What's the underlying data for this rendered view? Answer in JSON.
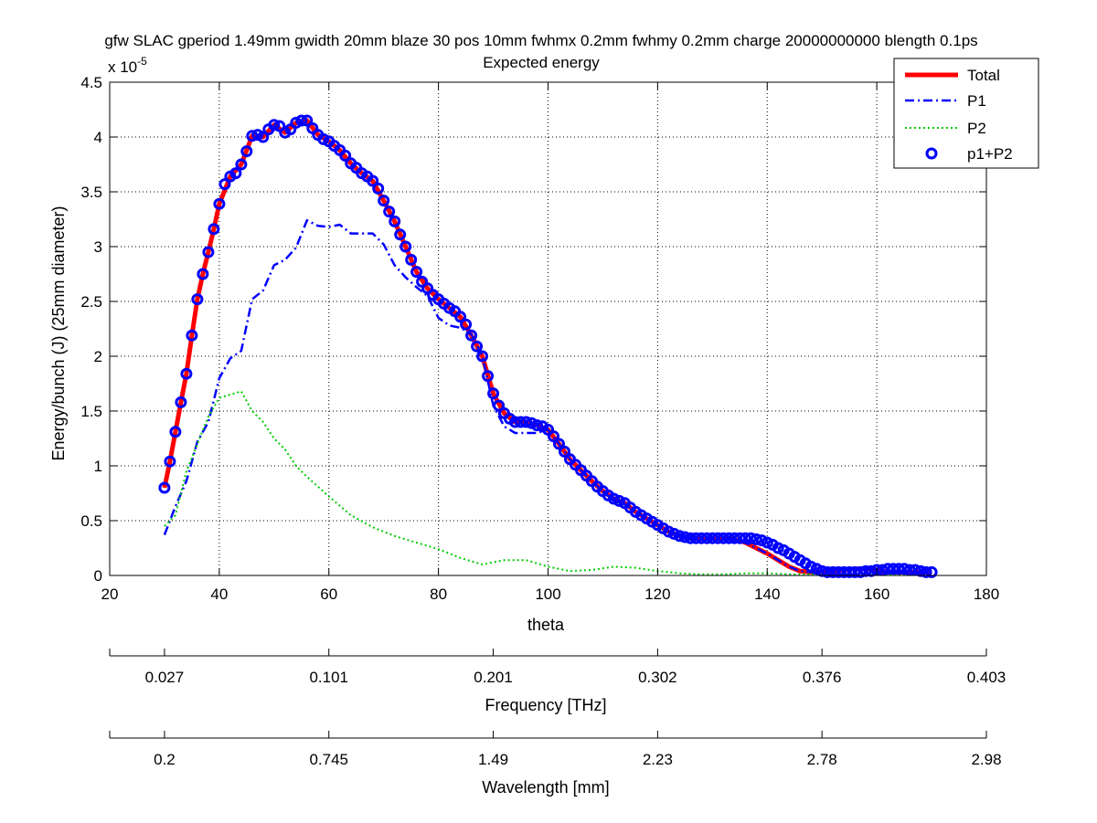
{
  "chart_data": {
    "type": "line",
    "title": "gfw SLAC gperiod 1.49mm gwidth 20mm blaze 30 pos 10mm fwhmx 0.2mm fwhmy 0.2mm charge 20000000000 blength 0.1ps",
    "subtitle": "Expected energy",
    "xlabel": "theta",
    "ylabel": "Energy/bunch (J)  (25mm diameter)",
    "y_multiplier_base": "x 10",
    "y_multiplier_exp": "-5",
    "xlim": [
      20,
      180
    ],
    "ylim": [
      0,
      4.5
    ],
    "x_ticks": [
      20,
      40,
      60,
      80,
      100,
      120,
      140,
      160,
      180
    ],
    "y_ticks": [
      0,
      0.5,
      1,
      1.5,
      2,
      2.5,
      3,
      3.5,
      4,
      4.5
    ],
    "grid": true,
    "legend_position": "top-right",
    "legend": [
      {
        "label": "Total",
        "color": "#ff0000",
        "style": "solid"
      },
      {
        "label": "P1",
        "color": "#0000ff",
        "style": "dashdot"
      },
      {
        "label": "P2",
        "color": "#00cc00",
        "style": "dotted"
      },
      {
        "label": "p1+P2",
        "color": "#0000ff",
        "style": "circle-marker"
      }
    ],
    "series": [
      {
        "name": "Total",
        "color": "#ff0000",
        "x": [
          30,
          31,
          32,
          33,
          34,
          35,
          36,
          37,
          38,
          39,
          40,
          42,
          44,
          46,
          48,
          50,
          52,
          54,
          56,
          58,
          60,
          62,
          64,
          66,
          68,
          70,
          72,
          74,
          76,
          78,
          80,
          82,
          84,
          86,
          88,
          90,
          92,
          94,
          96,
          98,
          100,
          102,
          104,
          106,
          108,
          110,
          112,
          114,
          116,
          118,
          120,
          122,
          124,
          126,
          128,
          130,
          132,
          134,
          136,
          138,
          140,
          142,
          144,
          146,
          148,
          150,
          152,
          154,
          156,
          158,
          160,
          162,
          164,
          166,
          168,
          170
        ],
        "y": [
          0.8,
          1.04,
          1.31,
          1.58,
          1.84,
          2.19,
          2.52,
          2.75,
          2.95,
          3.16,
          3.39,
          3.64,
          3.75,
          4.01,
          4.0,
          4.11,
          4.04,
          4.13,
          4.15,
          4.02,
          3.96,
          3.88,
          3.76,
          3.67,
          3.6,
          3.42,
          3.23,
          3.0,
          2.77,
          2.62,
          2.52,
          2.44,
          2.36,
          2.19,
          2.0,
          1.66,
          1.48,
          1.4,
          1.4,
          1.37,
          1.33,
          1.2,
          1.06,
          0.96,
          0.86,
          0.77,
          0.7,
          0.66,
          0.58,
          0.52,
          0.46,
          0.4,
          0.36,
          0.34,
          0.34,
          0.34,
          0.34,
          0.33,
          0.3,
          0.25,
          0.2,
          0.14,
          0.08,
          0.04,
          0.03,
          0.03,
          0.04,
          0.05,
          0.06,
          0.06,
          0.05,
          0.03,
          0.03,
          0.03,
          0.03,
          0.03
        ]
      },
      {
        "name": "P1",
        "color": "#0000ff",
        "x": [
          30,
          32,
          34,
          36,
          38,
          40,
          42,
          44,
          46,
          48,
          50,
          52,
          54,
          56,
          58,
          60,
          62,
          64,
          66,
          68,
          70,
          72,
          74,
          76,
          78,
          80,
          82,
          84,
          86,
          88,
          90,
          92,
          94,
          96,
          98,
          100,
          102,
          104,
          106,
          108,
          110,
          112,
          114,
          116,
          118,
          120,
          122,
          124,
          126,
          128,
          130,
          132,
          134,
          136,
          138,
          140,
          142,
          144,
          146,
          148,
          150,
          152,
          154,
          156,
          158,
          160,
          162,
          164,
          166,
          168,
          170
        ],
        "y": [
          0.37,
          0.63,
          0.86,
          1.22,
          1.4,
          1.8,
          1.98,
          2.05,
          2.52,
          2.6,
          2.83,
          2.88,
          2.99,
          3.24,
          3.19,
          3.18,
          3.2,
          3.12,
          3.12,
          3.12,
          3.02,
          2.83,
          2.72,
          2.63,
          2.55,
          2.35,
          2.28,
          2.26,
          2.2,
          2.0,
          1.55,
          1.36,
          1.3,
          1.3,
          1.3,
          1.33,
          1.2,
          1.06,
          0.96,
          0.86,
          0.77,
          0.68,
          0.65,
          0.58,
          0.52,
          0.46,
          0.4,
          0.36,
          0.34,
          0.34,
          0.34,
          0.34,
          0.33,
          0.3,
          0.25,
          0.2,
          0.14,
          0.08,
          0.04,
          0.03,
          0.03,
          0.04,
          0.05,
          0.06,
          0.06,
          0.05,
          0.03,
          0.03,
          0.03,
          0.03,
          0.03
        ]
      },
      {
        "name": "P2",
        "color": "#00cc00",
        "x": [
          30,
          32,
          34,
          36,
          38,
          40,
          42,
          44,
          46,
          48,
          50,
          52,
          54,
          56,
          60,
          64,
          68,
          72,
          76,
          80,
          84,
          88,
          92,
          96,
          100,
          104,
          108,
          112,
          116,
          120,
          124,
          128,
          132,
          136,
          140,
          144,
          148,
          152,
          156,
          160,
          164,
          168,
          170
        ],
        "y": [
          0.45,
          0.55,
          0.95,
          1.2,
          1.45,
          1.62,
          1.65,
          1.68,
          1.5,
          1.4,
          1.25,
          1.15,
          1.0,
          0.9,
          0.72,
          0.55,
          0.44,
          0.36,
          0.3,
          0.24,
          0.16,
          0.1,
          0.14,
          0.14,
          0.08,
          0.04,
          0.05,
          0.08,
          0.07,
          0.04,
          0.02,
          0.01,
          0.01,
          0.02,
          0.02,
          0.01,
          0.01,
          0.01,
          0.01,
          0.01,
          0.01,
          0.01,
          0.01
        ]
      },
      {
        "name": "p1+P2",
        "color": "#0000ff",
        "marker": "circle",
        "x": [
          30,
          31,
          32,
          33,
          34,
          35,
          36,
          37,
          38,
          39,
          40,
          41,
          42,
          43,
          44,
          45,
          46,
          47,
          48,
          49,
          50,
          51,
          52,
          53,
          54,
          55,
          56,
          57,
          58,
          59,
          60,
          61,
          62,
          63,
          64,
          65,
          66,
          67,
          68,
          69,
          70,
          71,
          72,
          73,
          74,
          75,
          76,
          77,
          78,
          79,
          80,
          81,
          82,
          83,
          84,
          85,
          86,
          87,
          88,
          89,
          90,
          91,
          92,
          93,
          94,
          95,
          96,
          97,
          98,
          99,
          100,
          101,
          102,
          103,
          104,
          105,
          106,
          107,
          108,
          109,
          110,
          111,
          112,
          113,
          114,
          115,
          116,
          117,
          118,
          119,
          120,
          121,
          122,
          123,
          124,
          125,
          126,
          127,
          128,
          129,
          130,
          131,
          132,
          133,
          134,
          135,
          136,
          137,
          138,
          139,
          140,
          141,
          142,
          143,
          144,
          145,
          146,
          147,
          148,
          149,
          150,
          151,
          152,
          153,
          154,
          155,
          156,
          157,
          158,
          159,
          160,
          161,
          162,
          163,
          164,
          165,
          166,
          167,
          168,
          169,
          170
        ],
        "y": [
          0.8,
          1.04,
          1.31,
          1.58,
          1.84,
          2.19,
          2.52,
          2.75,
          2.95,
          3.16,
          3.39,
          3.57,
          3.64,
          3.67,
          3.75,
          3.87,
          4.01,
          4.02,
          4.0,
          4.07,
          4.11,
          4.1,
          4.04,
          4.07,
          4.13,
          4.15,
          4.15,
          4.08,
          4.02,
          3.98,
          3.96,
          3.92,
          3.88,
          3.83,
          3.76,
          3.72,
          3.67,
          3.64,
          3.6,
          3.53,
          3.42,
          3.32,
          3.23,
          3.11,
          3.0,
          2.88,
          2.77,
          2.68,
          2.62,
          2.56,
          2.52,
          2.48,
          2.44,
          2.41,
          2.36,
          2.29,
          2.19,
          2.09,
          2.0,
          1.82,
          1.66,
          1.55,
          1.48,
          1.43,
          1.4,
          1.4,
          1.4,
          1.39,
          1.37,
          1.36,
          1.33,
          1.27,
          1.2,
          1.13,
          1.06,
          1.01,
          0.96,
          0.91,
          0.86,
          0.81,
          0.77,
          0.73,
          0.7,
          0.68,
          0.66,
          0.62,
          0.58,
          0.55,
          0.52,
          0.49,
          0.46,
          0.43,
          0.4,
          0.38,
          0.36,
          0.35,
          0.34,
          0.34,
          0.34,
          0.34,
          0.34,
          0.34,
          0.34,
          0.34,
          0.34,
          0.34,
          0.34,
          0.34,
          0.33,
          0.32,
          0.3,
          0.28,
          0.25,
          0.23,
          0.2,
          0.17,
          0.14,
          0.11,
          0.08,
          0.06,
          0.04,
          0.03,
          0.03,
          0.03,
          0.03,
          0.03,
          0.03,
          0.03,
          0.04,
          0.04,
          0.05,
          0.05,
          0.06,
          0.06,
          0.06,
          0.06,
          0.05,
          0.05,
          0.04,
          0.03,
          0.03
        ]
      }
    ]
  },
  "secondary_axes": [
    {
      "label": "Frequency [THz]",
      "tick_labels": [
        "0.027",
        "0.101",
        "0.201",
        "0.302",
        "0.376",
        "0.403"
      ],
      "tick_theta": [
        30,
        60,
        90,
        120,
        150,
        180
      ]
    },
    {
      "label": "Wavelength [mm]",
      "tick_labels": [
        "0.2",
        "0.745",
        "1.49",
        "2.23",
        "2.78",
        "2.98"
      ],
      "tick_theta": [
        30,
        60,
        90,
        120,
        150,
        180
      ]
    }
  ]
}
